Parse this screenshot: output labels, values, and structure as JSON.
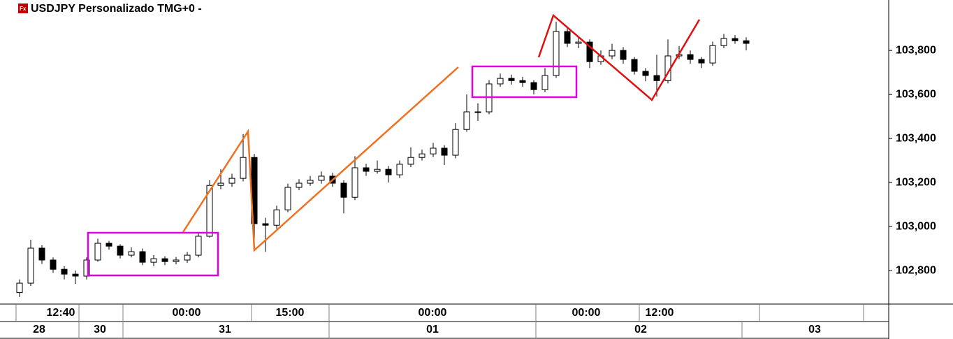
{
  "chart_data": {
    "type": "candlestick",
    "title": "USDJPY Personalizado TMG+0 -",
    "open": [
      102.7,
      102.743,
      102.902,
      102.848,
      102.806,
      102.784,
      102.775,
      102.848,
      102.924,
      102.911,
      102.87,
      102.886,
      102.838,
      102.854,
      102.841,
      102.848,
      102.87,
      102.956,
      103.187,
      103.197,
      103.219,
      103.314,
      103.013,
      103.006,
      103.076,
      103.178,
      103.197,
      103.21,
      103.229,
      103.197,
      103.133,
      103.267,
      103.251,
      103.26,
      103.235,
      103.283,
      103.314,
      103.33,
      103.356,
      103.324,
      103.441,
      103.521,
      103.521,
      103.648,
      103.673,
      103.663,
      103.654,
      103.622,
      103.686,
      103.886,
      103.832,
      103.838,
      103.749,
      103.775,
      103.8,
      103.759,
      103.705,
      103.686,
      103.663,
      103.775,
      103.781,
      103.759,
      103.743,
      103.822,
      103.854,
      103.844
    ],
    "high": [
      102.76,
      102.94,
      102.915,
      102.86,
      102.82,
      102.8,
      102.86,
      102.945,
      102.935,
      102.92,
      102.905,
      102.9,
      102.87,
      102.865,
      102.862,
      102.885,
      102.975,
      103.21,
      103.26,
      103.24,
      103.42,
      103.33,
      103.04,
      103.095,
      103.195,
      103.215,
      103.23,
      103.25,
      103.245,
      103.21,
      103.32,
      103.285,
      103.3,
      103.275,
      103.3,
      103.36,
      103.35,
      103.38,
      103.37,
      103.47,
      103.6,
      103.56,
      103.665,
      103.695,
      103.69,
      103.68,
      103.665,
      103.72,
      103.93,
      103.9,
      103.86,
      103.85,
      103.8,
      103.83,
      103.815,
      103.77,
      103.72,
      103.78,
      103.85,
      103.82,
      103.8,
      103.77,
      103.84,
      103.875,
      103.87,
      103.86
    ],
    "low": [
      102.68,
      102.73,
      102.83,
      102.79,
      102.76,
      102.74,
      102.76,
      102.84,
      102.895,
      102.855,
      102.86,
      102.825,
      102.82,
      102.825,
      102.828,
      102.835,
      102.86,
      102.95,
      103.17,
      103.18,
      103.205,
      102.9,
      102.885,
      102.99,
      103.065,
      103.165,
      103.185,
      103.195,
      103.18,
      103.06,
      103.12,
      103.23,
      103.24,
      103.2,
      103.22,
      103.27,
      103.3,
      103.315,
      103.28,
      103.31,
      103.43,
      103.48,
      103.51,
      103.635,
      103.645,
      103.635,
      103.6,
      103.61,
      103.675,
      103.815,
      103.81,
      103.72,
      103.735,
      103.76,
      103.74,
      103.69,
      103.66,
      103.59,
      103.65,
      103.76,
      103.74,
      103.72,
      103.73,
      103.81,
      103.83,
      103.8
    ],
    "close": [
      102.743,
      102.902,
      102.848,
      102.806,
      102.784,
      102.775,
      102.848,
      102.924,
      102.911,
      102.87,
      102.886,
      102.838,
      102.854,
      102.841,
      102.848,
      102.87,
      102.956,
      103.187,
      103.197,
      103.219,
      103.314,
      103.013,
      103.006,
      103.076,
      103.178,
      103.197,
      103.21,
      103.229,
      103.197,
      103.133,
      103.267,
      103.251,
      103.26,
      103.235,
      103.283,
      103.314,
      103.33,
      103.356,
      103.324,
      103.441,
      103.521,
      103.521,
      103.648,
      103.673,
      103.663,
      103.654,
      103.622,
      103.686,
      103.886,
      103.832,
      103.838,
      103.749,
      103.775,
      103.8,
      103.759,
      103.705,
      103.686,
      103.663,
      103.775,
      103.781,
      103.759,
      103.743,
      103.822,
      103.854,
      103.844,
      103.832
    ],
    "up_color": "#ffffff",
    "down_color": "#000000",
    "wick_color": "#000000",
    "ylim": [
      102.648,
      104.029
    ],
    "yticks": [
      {
        "value": 102.8,
        "label": "102,800"
      },
      {
        "value": 103.0,
        "label": "103,000"
      },
      {
        "value": 103.2,
        "label": "103,200"
      },
      {
        "value": 103.4,
        "label": "103,400"
      },
      {
        "value": 103.6,
        "label": "103,600"
      },
      {
        "value": 103.8,
        "label": "103,800"
      }
    ],
    "time_labels": [
      "12:40",
      "00:00",
      "15:00",
      "00:00",
      "00:00",
      "12:00"
    ],
    "date_labels": [
      "28",
      "30",
      "31",
      "01",
      "02",
      "03"
    ]
  }
}
